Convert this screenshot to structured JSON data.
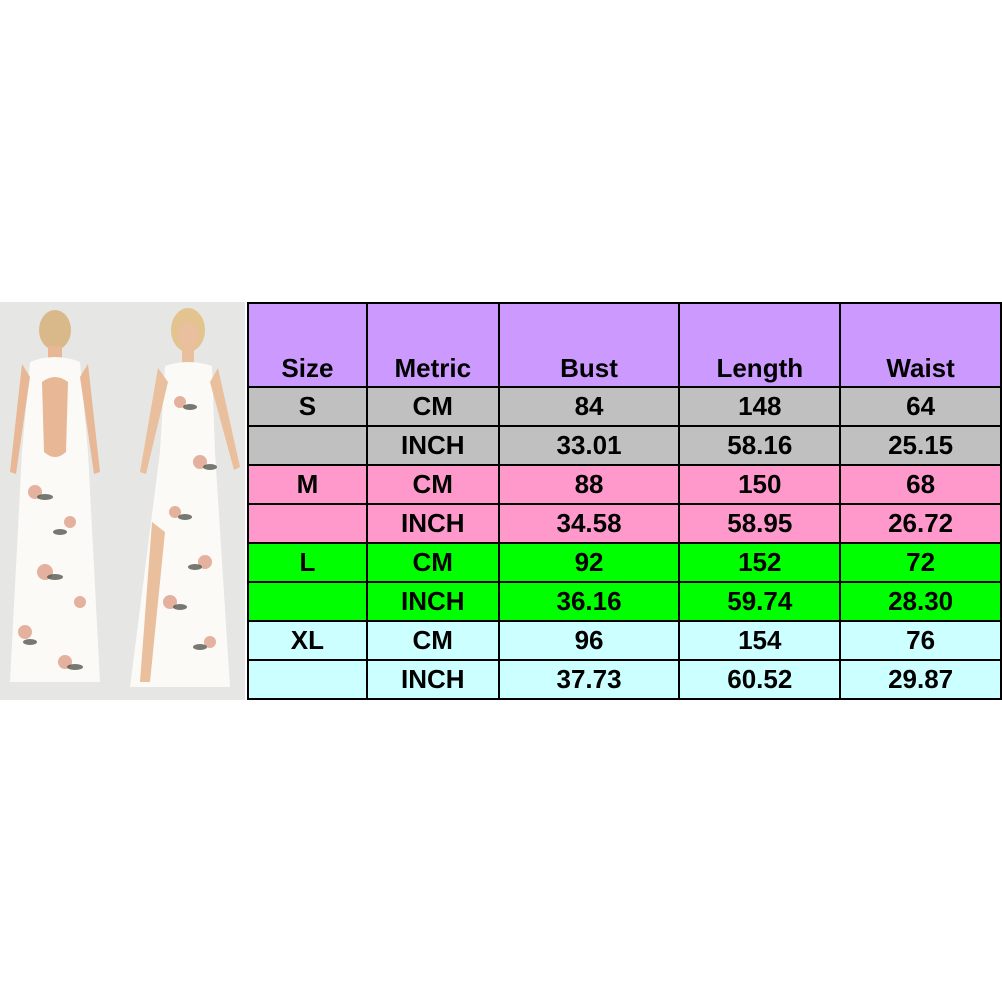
{
  "colors": {
    "header": "#cc99ff",
    "S": "#c0c0c0",
    "M": "#ff99cc",
    "L": "#00ff00",
    "XL": "#ccffff"
  },
  "table": {
    "headers": [
      "Size",
      "Metric",
      "Bust",
      "Length",
      "Waist"
    ],
    "rows": [
      {
        "group": "S",
        "cells": [
          "S",
          "CM",
          "84",
          "148",
          "64"
        ]
      },
      {
        "group": "S",
        "cells": [
          "",
          "INCH",
          "33.01",
          "58.16",
          "25.15"
        ]
      },
      {
        "group": "M",
        "cells": [
          "M",
          "CM",
          "88",
          "150",
          "68"
        ]
      },
      {
        "group": "M",
        "cells": [
          "",
          "INCH",
          "34.58",
          "58.95",
          "26.72"
        ]
      },
      {
        "group": "L",
        "cells": [
          "L",
          "CM",
          "92",
          "152",
          "72"
        ]
      },
      {
        "group": "L",
        "cells": [
          "",
          "INCH",
          "36.16",
          "59.74",
          "28.30"
        ]
      },
      {
        "group": "XL",
        "cells": [
          "XL",
          "CM",
          "96",
          "154",
          "76"
        ]
      },
      {
        "group": "XL",
        "cells": [
          "",
          "INCH",
          "37.73",
          "60.52",
          "29.87"
        ]
      }
    ]
  }
}
